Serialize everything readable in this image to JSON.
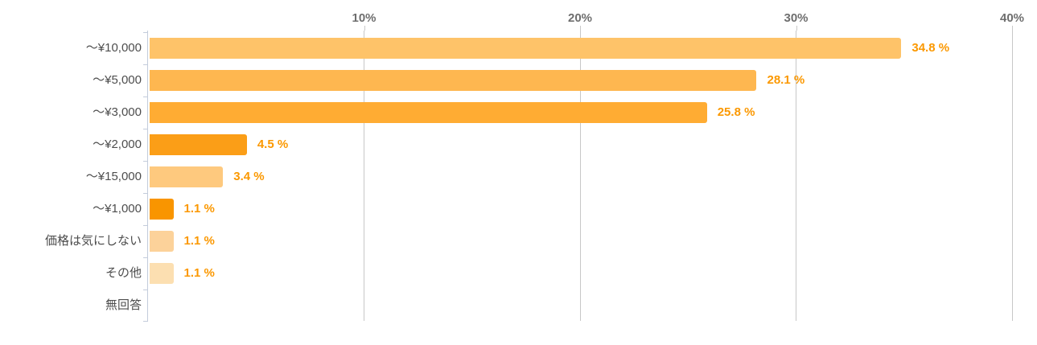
{
  "chart_data": {
    "type": "bar",
    "orientation": "horizontal",
    "title": "",
    "xlabel": "",
    "ylabel": "",
    "categories": [
      "～¥10,000",
      "～¥5,000",
      "～¥3,000",
      "～¥2,000",
      "～¥15,000",
      "～¥1,000",
      "価格は気にしない",
      "その他",
      "無回答"
    ],
    "values": [
      34.8,
      28.1,
      25.8,
      4.5,
      3.4,
      1.1,
      1.1,
      1.1,
      0
    ],
    "value_labels": [
      "34.8 %",
      "28.1 %",
      "25.8 %",
      "4.5 %",
      "3.4 %",
      "1.1 %",
      "1.1 %",
      "1.1 %",
      ""
    ],
    "bar_colors": [
      "#FEC369",
      "#FEB750",
      "#FFAC33",
      "#FB9E17",
      "#FEC97E",
      "#F99500",
      "#FCD29A",
      "#FCDFB1",
      ""
    ],
    "x_tick_labels": [
      "10%",
      "20%",
      "30%",
      "40%"
    ],
    "x_tick_values": [
      10,
      20,
      30,
      40
    ],
    "xlim": [
      0,
      40
    ],
    "grid": true,
    "legend": "none",
    "colors": {
      "axis": "#C3CCDB",
      "gridline": "#C7C7C7",
      "x_tick_label": "#6E6E6E",
      "category_label": "#4D4D4D",
      "value_label": "#FB9800",
      "background": "#FFFFFF"
    }
  }
}
